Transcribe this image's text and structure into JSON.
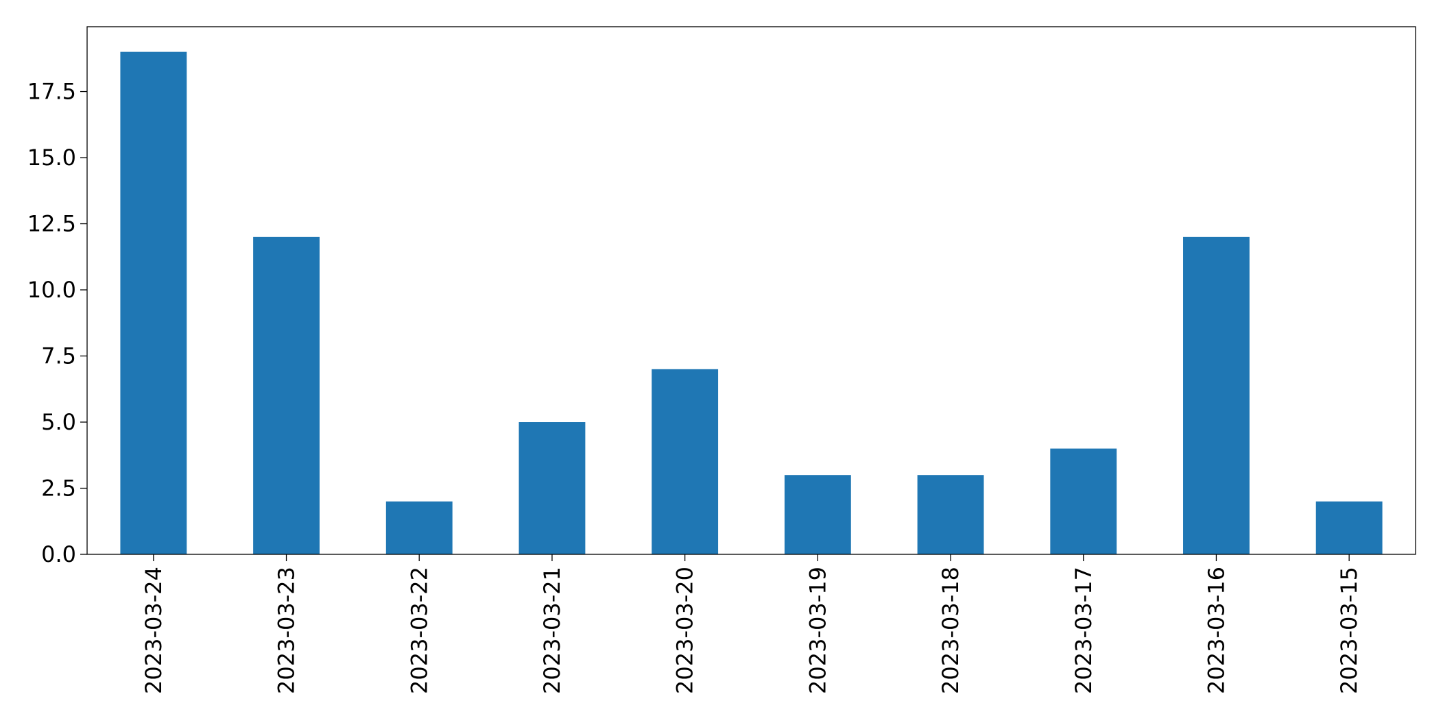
{
  "chart_data": {
    "type": "bar",
    "categories": [
      "2023-03-24",
      "2023-03-23",
      "2023-03-22",
      "2023-03-21",
      "2023-03-20",
      "2023-03-19",
      "2023-03-18",
      "2023-03-17",
      "2023-03-16",
      "2023-03-15"
    ],
    "values": [
      19,
      12,
      2,
      5,
      7,
      3,
      3,
      4,
      12,
      2
    ],
    "color": "#1f77b4",
    "ylim": [
      0,
      19.95
    ],
    "yticks": [
      {
        "value": 0,
        "label": "0.0"
      },
      {
        "value": 2.5,
        "label": "2.5"
      },
      {
        "value": 5,
        "label": "5.0"
      },
      {
        "value": 7.5,
        "label": "7.5"
      },
      {
        "value": 10,
        "label": "10.0"
      },
      {
        "value": 12.5,
        "label": "12.5"
      },
      {
        "value": 15,
        "label": "15.0"
      },
      {
        "value": 17.5,
        "label": "17.5"
      }
    ],
    "grid": false
  }
}
